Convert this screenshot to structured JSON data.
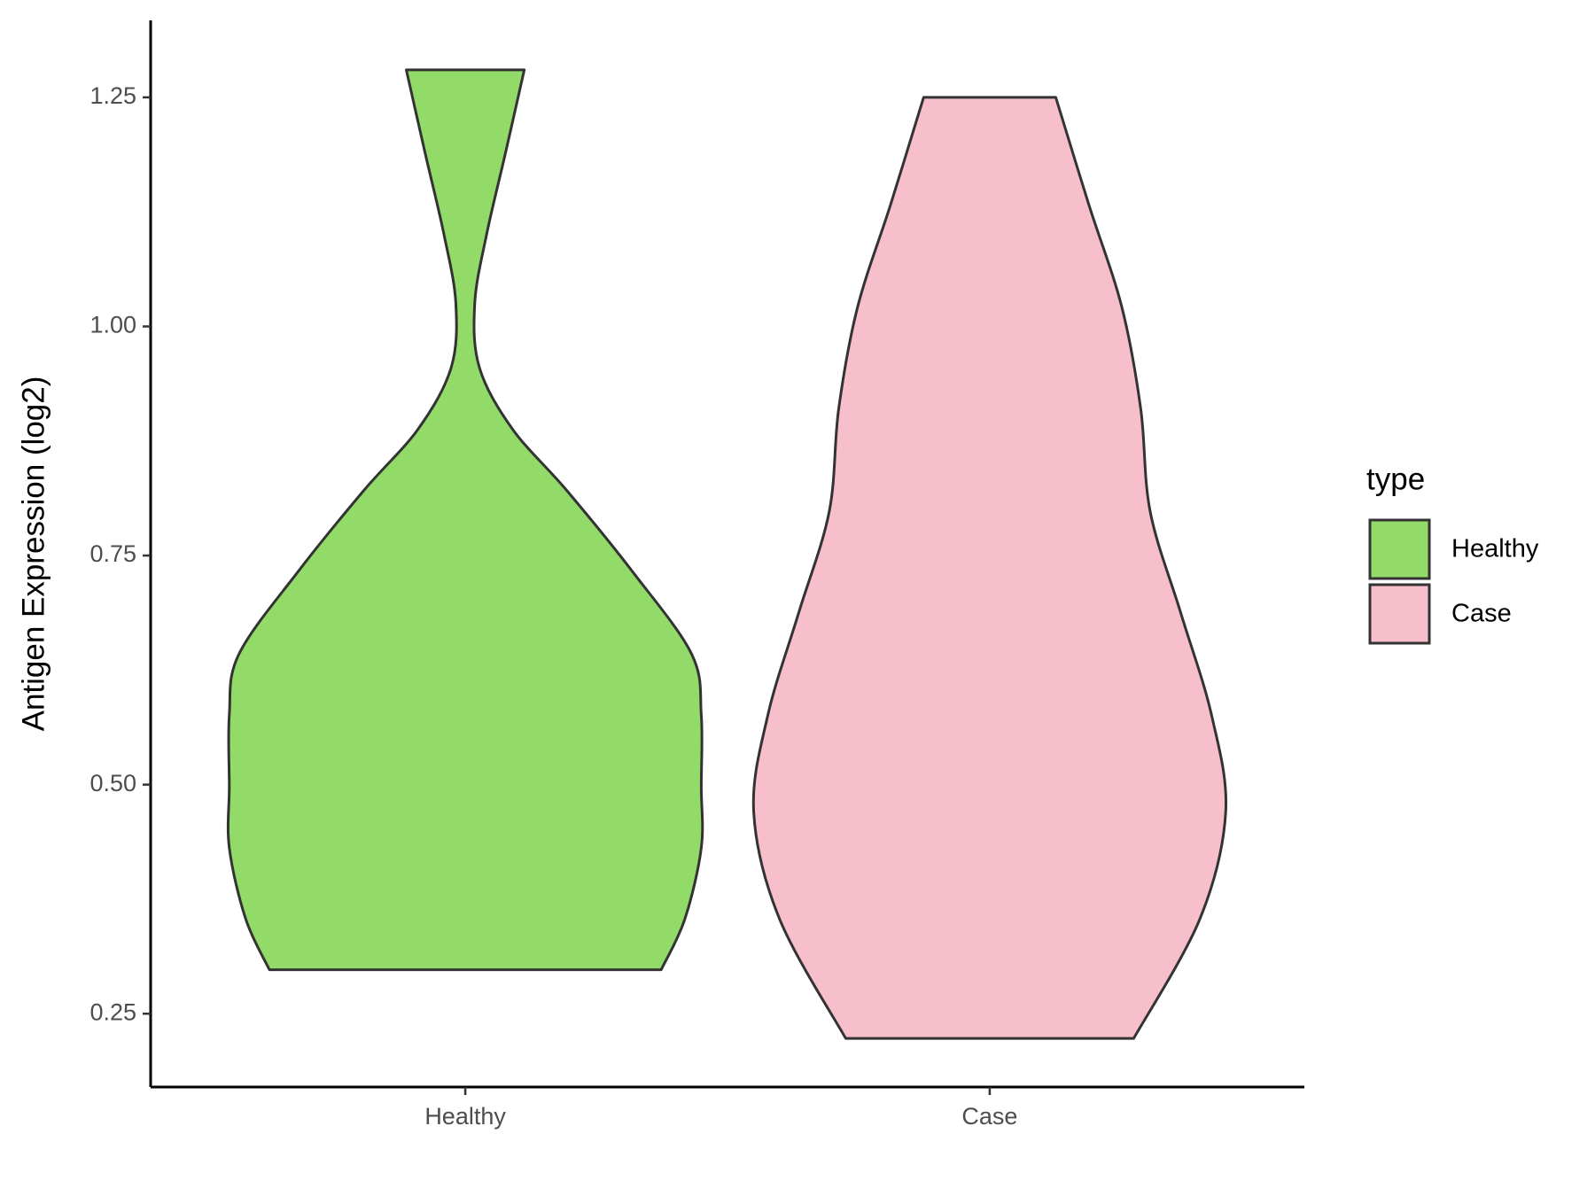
{
  "chart_data": {
    "type": "violin",
    "y_label": "Antigen Expression (log2)",
    "categories": [
      "Healthy",
      "Case"
    ],
    "legend_title": "type",
    "series": [
      {
        "name": "Healthy",
        "color": "#93db69",
        "y": [
          1.28,
          1.189,
          1.1,
          1.025,
          0.955,
          0.888,
          0.821,
          0.732,
          0.642,
          0.576,
          0.498,
          0.431,
          0.353,
          0.298
        ],
        "width": [
          0.25,
          0.17,
          0.09,
          0.04,
          0.06,
          0.2,
          0.43,
          0.71,
          0.96,
          1.0,
          1.0,
          1.0,
          0.93,
          0.83
        ]
      },
      {
        "name": "Case",
        "color": "#f7bfcb",
        "y": [
          1.25,
          1.133,
          1.021,
          0.91,
          0.798,
          0.687,
          0.576,
          0.47,
          0.353,
          0.223
        ],
        "width": [
          0.28,
          0.42,
          0.56,
          0.64,
          0.68,
          0.81,
          0.94,
          1.0,
          0.89,
          0.61
        ]
      }
    ],
    "ylim": [
      0.17,
      1.334
    ],
    "yticks": [
      0.25,
      {
        "value": 0.5,
        "label": "0.50"
      },
      0.75,
      {
        "value": 1,
        "label": "1.00"
      },
      1.25
    ]
  }
}
